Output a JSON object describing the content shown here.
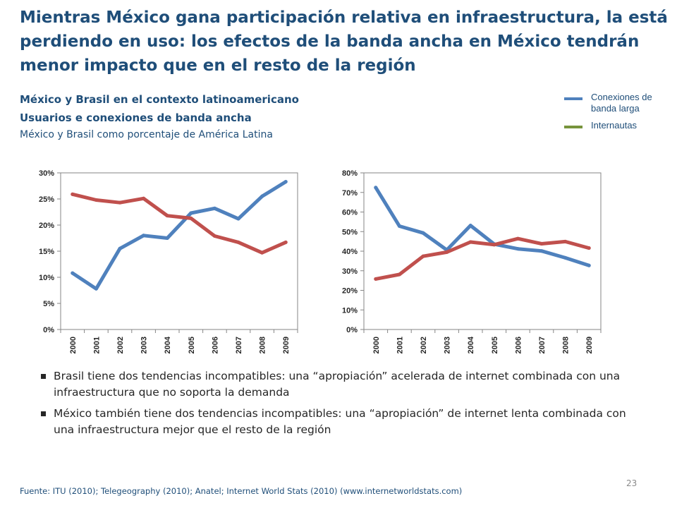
{
  "title": "Mientras México gana participación relativa en infraestructura, la está perdiendo en uso: los efectos de la banda ancha en México tendrán menor impacto que en el resto de la región",
  "subtitle_1": "México y Brasil en el contexto latinoamericano",
  "subtitle_2": "Usuarios e conexiones de banda  ancha",
  "subtitle_3": "México y Brasil como porcentaje de América Latina",
  "legend": {
    "items": [
      {
        "label": "Conexiones de banda larga",
        "color": "#4f81bd"
      },
      {
        "label": "Internautas",
        "color": "#77933c"
      }
    ]
  },
  "chart_data": [
    {
      "type": "line",
      "x": [
        "2000",
        "2001",
        "2002",
        "2003",
        "2004",
        "2005",
        "2006",
        "2007",
        "2008",
        "2009"
      ],
      "yticks": [
        "0%",
        "5%",
        "10%",
        "15%",
        "20%",
        "25%",
        "30%"
      ],
      "ylim": [
        0,
        30
      ],
      "grid": false,
      "series": [
        {
          "color": "#4f81bd",
          "values": [
            10.8,
            7.8,
            15.5,
            18.0,
            17.5,
            22.3,
            23.2,
            21.2,
            25.5,
            28.3
          ]
        },
        {
          "color": "#c0504d",
          "values": [
            25.9,
            24.8,
            24.3,
            25.1,
            21.8,
            21.3,
            17.9,
            16.7,
            14.7,
            16.7
          ]
        }
      ]
    },
    {
      "type": "line",
      "x": [
        "2000",
        "2001",
        "2002",
        "2003",
        "2004",
        "2005",
        "2006",
        "2007",
        "2008",
        "2009"
      ],
      "yticks": [
        "0%",
        "10%",
        "20%",
        "30%",
        "40%",
        "50%",
        "60%",
        "70%",
        "80%"
      ],
      "ylim": [
        0,
        80
      ],
      "grid": false,
      "series": [
        {
          "color": "#4f81bd",
          "values": [
            72.5,
            52.8,
            49.3,
            40.6,
            53.1,
            43.6,
            41.2,
            40.1,
            36.6,
            32.7
          ]
        },
        {
          "color": "#c0504d",
          "values": [
            25.8,
            28.1,
            37.4,
            39.5,
            44.7,
            43.3,
            46.4,
            43.8,
            44.9,
            41.6
          ]
        }
      ]
    }
  ],
  "bullets": [
    "Brasil tiene dos tendencias incompatibles: una “apropiación” acelerada de internet combinada con una infraestructura que no soporta la demanda",
    "México también tiene dos tendencias incompatibles: una “apropiación” de internet lenta combinada con una infraestructura mejor que el resto de la región"
  ],
  "footer": "Fuente: ITU (2010); Telegeography (2010); Anatel; Internet World Stats (2010) (www.internetworldstats.com)",
  "page_number": "23"
}
